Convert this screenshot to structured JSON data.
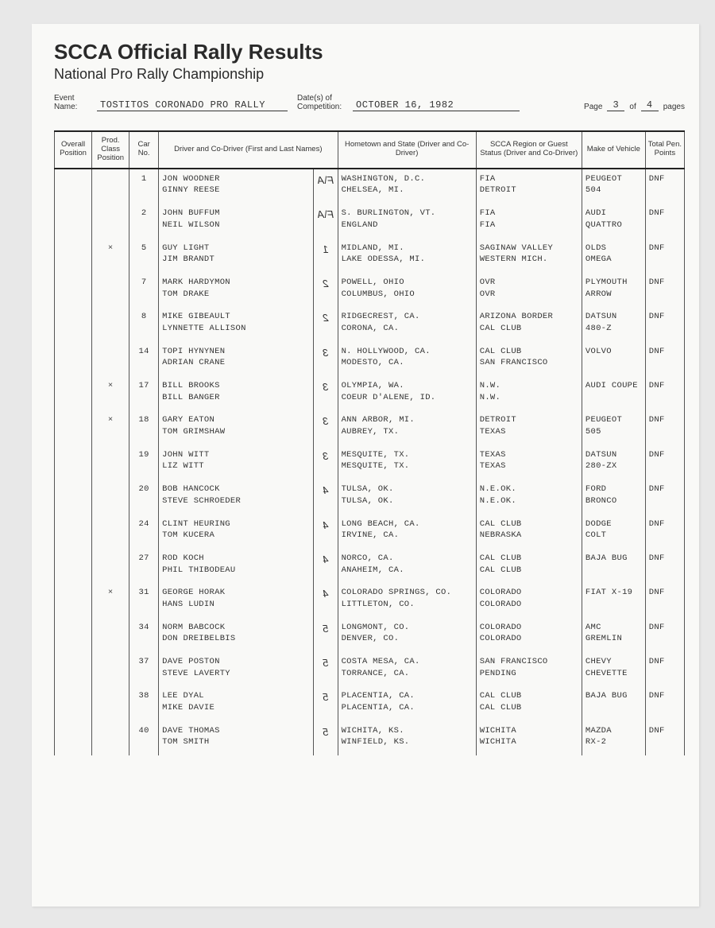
{
  "header": {
    "title": "SCCA Official Rally Results",
    "subtitle": "National Pro Rally Championship",
    "event_label": "Event Name:",
    "event_name": "TOSTITOS CORONADO PRO RALLY",
    "dates_label": "Date(s) of Competition:",
    "dates_value": "OCTOBER 16, 1982",
    "page_label_a": "Page",
    "page_current": "3",
    "page_label_b": "of",
    "page_total": "4",
    "page_label_c": "pages"
  },
  "columns": {
    "overall": "Overall Position",
    "class": "Prod. Class Position",
    "carno": "Car No.",
    "driver": "Driver and Co-Driver (First and Last Names)",
    "hometown": "Hometown and State (Driver and Co-Driver)",
    "region": "SCCA Region or Guest Status (Driver and Co-Driver)",
    "make": "Make of Vehicle",
    "pen": "Total Pen. Points"
  },
  "rows": [
    {
      "class_mark": "",
      "carno": "1",
      "driver1": "JON WOODNER",
      "driver2": "GINNY REESE",
      "hw": "F\\A",
      "home1": "WASHINGTON, D.C.",
      "home2": "CHELSEA, MI.",
      "region1": "FIA",
      "region2": "DETROIT",
      "make1": "PEUGEOT",
      "make2": "504",
      "pen": "DNF"
    },
    {
      "class_mark": "",
      "carno": "2",
      "driver1": "JOHN BUFFUM",
      "driver2": "NEIL WILSON",
      "hw": "F\\A",
      "home1": "S. BURLINGTON, VT.",
      "home2": "ENGLAND",
      "region1": "FIA",
      "region2": "FIA",
      "make1": "AUDI",
      "make2": "QUATTRO",
      "pen": "DNF"
    },
    {
      "class_mark": "×",
      "carno": "5",
      "driver1": "GUY LIGHT",
      "driver2": "JIM BRANDT",
      "hw": "1",
      "home1": "MIDLAND, MI.",
      "home2": "LAKE ODESSA, MI.",
      "region1": "SAGINAW VALLEY",
      "region2": "WESTERN MICH.",
      "make1": "OLDS",
      "make2": "OMEGA",
      "pen": "DNF"
    },
    {
      "class_mark": "",
      "carno": "7",
      "driver1": "MARK HARDYMON",
      "driver2": "TOM DRAKE",
      "hw": "2",
      "home1": "POWELL, OHIO",
      "home2": "COLUMBUS, OHIO",
      "region1": "OVR",
      "region2": "OVR",
      "make1": "PLYMOUTH",
      "make2": "ARROW",
      "pen": "DNF"
    },
    {
      "class_mark": "",
      "carno": "8",
      "driver1": "MIKE GIBEAULT",
      "driver2": "LYNNETTE ALLISON",
      "hw": "2",
      "home1": "RIDGECREST, CA.",
      "home2": "CORONA, CA.",
      "region1": "ARIZONA BORDER",
      "region2": "CAL CLUB",
      "make1": "DATSUN",
      "make2": "480-Z",
      "pen": "DNF"
    },
    {
      "class_mark": "",
      "carno": "14",
      "driver1": "TOPI HYNYNEN",
      "driver2": "ADRIAN CRANE",
      "hw": "3",
      "home1": "N. HOLLYWOOD, CA.",
      "home2": "MODESTO, CA.",
      "region1": "CAL CLUB",
      "region2": "SAN FRANCISCO",
      "make1": "VOLVO",
      "make2": "",
      "pen": "DNF"
    },
    {
      "class_mark": "×",
      "carno": "17",
      "driver1": "BILL BROOKS",
      "driver2": "BILL BANGER",
      "hw": "3",
      "home1": "OLYMPIA, WA.",
      "home2": "COEUR D'ALENE, ID.",
      "region1": "N.W.",
      "region2": "N.W.",
      "make1": "AUDI COUPE",
      "make2": "",
      "pen": "DNF"
    },
    {
      "class_mark": "×",
      "carno": "18",
      "driver1": "GARY EATON",
      "driver2": "TOM GRIMSHAW",
      "hw": "3",
      "home1": "ANN ARBOR, MI.",
      "home2": "AUBREY, TX.",
      "region1": "DETROIT",
      "region2": "TEXAS",
      "make1": "PEUGEOT",
      "make2": "505",
      "pen": "DNF"
    },
    {
      "class_mark": "",
      "carno": "19",
      "driver1": "JOHN WITT",
      "driver2": "LIZ WITT",
      "hw": "3",
      "home1": "MESQUITE, TX.",
      "home2": "MESQUITE, TX.",
      "region1": "TEXAS",
      "region2": "TEXAS",
      "make1": "DATSUN",
      "make2": "280-ZX",
      "pen": "DNF"
    },
    {
      "class_mark": "",
      "carno": "20",
      "driver1": "BOB HANCOCK",
      "driver2": "STEVE SCHROEDER",
      "hw": "4",
      "home1": "TULSA, OK.",
      "home2": "TULSA, OK.",
      "region1": "N.E.OK.",
      "region2": "N.E.OK.",
      "make1": "FORD",
      "make2": "BRONCO",
      "pen": "DNF"
    },
    {
      "class_mark": "",
      "carno": "24",
      "driver1": "CLINT HEURING",
      "driver2": "TOM KUCERA",
      "hw": "4",
      "home1": "LONG BEACH, CA.",
      "home2": "IRVINE, CA.",
      "region1": "CAL CLUB",
      "region2": "NEBRASKA",
      "make1": "DODGE",
      "make2": "COLT",
      "pen": "DNF"
    },
    {
      "class_mark": "",
      "carno": "27",
      "driver1": "ROD KOCH",
      "driver2": "PHIL THIBODEAU",
      "hw": "4",
      "home1": "NORCO, CA.",
      "home2": "ANAHEIM, CA.",
      "region1": "CAL CLUB",
      "region2": "CAL CLUB",
      "make1": "BAJA BUG",
      "make2": "",
      "pen": "DNF"
    },
    {
      "class_mark": "×",
      "carno": "31",
      "driver1": "GEORGE HORAK",
      "driver2": "HANS LUDIN",
      "hw": "4",
      "home1": "COLORADO SPRINGS, CO.",
      "home2": "LITTLETON, CO.",
      "region1": "COLORADO",
      "region2": "COLORADO",
      "make1": "FIAT X-19",
      "make2": "",
      "pen": "DNF"
    },
    {
      "class_mark": "",
      "carno": "34",
      "driver1": "NORM BABCOCK",
      "driver2": "DON DREIBELBIS",
      "hw": "5",
      "home1": "LONGMONT, CO.",
      "home2": "DENVER, CO.",
      "region1": "COLORADO",
      "region2": "COLORADO",
      "make1": "AMC",
      "make2": "GREMLIN",
      "pen": "DNF"
    },
    {
      "class_mark": "",
      "carno": "37",
      "driver1": "DAVE POSTON",
      "driver2": "STEVE LAVERTY",
      "hw": "5",
      "home1": "COSTA MESA, CA.",
      "home2": "TORRANCE, CA.",
      "region1": "SAN FRANCISCO",
      "region2": "PENDING",
      "make1": "CHEVY",
      "make2": "CHEVETTE",
      "pen": "DNF"
    },
    {
      "class_mark": "",
      "carno": "38",
      "driver1": "LEE DYAL",
      "driver2": "MIKE DAVIE",
      "hw": "5",
      "home1": "PLACENTIA, CA.",
      "home2": "PLACENTIA, CA.",
      "region1": "CAL CLUB",
      "region2": "CAL CLUB",
      "make1": "BAJA BUG",
      "make2": "",
      "pen": "DNF"
    },
    {
      "class_mark": "",
      "carno": "40",
      "driver1": "DAVE THOMAS",
      "driver2": "TOM SMITH",
      "hw": "5",
      "home1": "WICHITA, KS.",
      "home2": "WINFIELD, KS.",
      "region1": "WICHITA",
      "region2": "WICHITA",
      "make1": "MAZDA",
      "make2": "RX-2",
      "pen": "DNF"
    }
  ]
}
